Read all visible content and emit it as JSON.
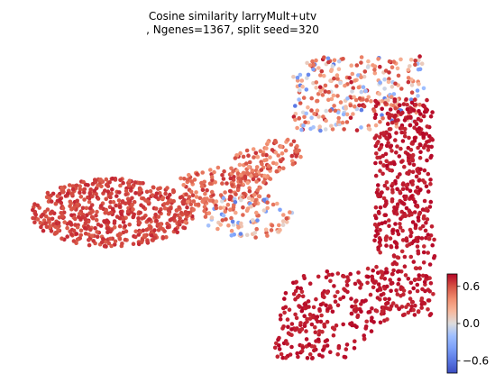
{
  "chart_data": {
    "type": "scatter",
    "title_line1": "Cosine similarity larryMult+utv",
    "title_line2": ", Ngenes=1367, split seed=320",
    "xlabel": "",
    "ylabel": "",
    "axes_visible": false,
    "grid": false,
    "colormap": "coolwarm",
    "colorbar": {
      "placement": "bottom-right",
      "vmin": -0.8,
      "vmax": 0.8,
      "ticks": [
        0.6,
        0.0,
        -0.6
      ],
      "tick_labels": [
        "0.6",
        "0.0",
        "−0.6"
      ]
    },
    "regions": [
      {
        "name": "left-arm",
        "x": [
          34,
          215
        ],
        "y": [
          196,
          275
        ],
        "value_range": [
          0.55,
          0.72
        ],
        "share": 0.28
      },
      {
        "name": "left-bridge",
        "x": [
          200,
          300
        ],
        "y": [
          185,
          270
        ],
        "value_range": [
          0.4,
          0.7
        ],
        "share": 0.08
      },
      {
        "name": "junction",
        "x": [
          225,
          330
        ],
        "y": [
          215,
          270
        ],
        "value_range": [
          -0.6,
          0.6
        ],
        "share": 0.05
      },
      {
        "name": "upper-mid-arm",
        "x": [
          255,
          335
        ],
        "y": [
          155,
          215
        ],
        "value_range": [
          0.3,
          0.7
        ],
        "share": 0.06
      },
      {
        "name": "top-plateau",
        "x": [
          325,
          470
        ],
        "y": [
          62,
          150
        ],
        "value_range": [
          -0.6,
          0.75
        ],
        "share": 0.15
      },
      {
        "name": "right-column",
        "x": [
          400,
          482
        ],
        "y": [
          110,
          350
        ],
        "value_range": [
          0.7,
          0.8
        ],
        "share": 0.25
      },
      {
        "name": "bottom-foot",
        "x": [
          295,
          440
        ],
        "y": [
          300,
          398
        ],
        "value_range": [
          0.7,
          0.8
        ],
        "share": 0.13
      }
    ],
    "n_points": 2000
  },
  "colors": {
    "low": "#3b4cc0",
    "mid": "#dddcdc",
    "high": "#b40426"
  }
}
